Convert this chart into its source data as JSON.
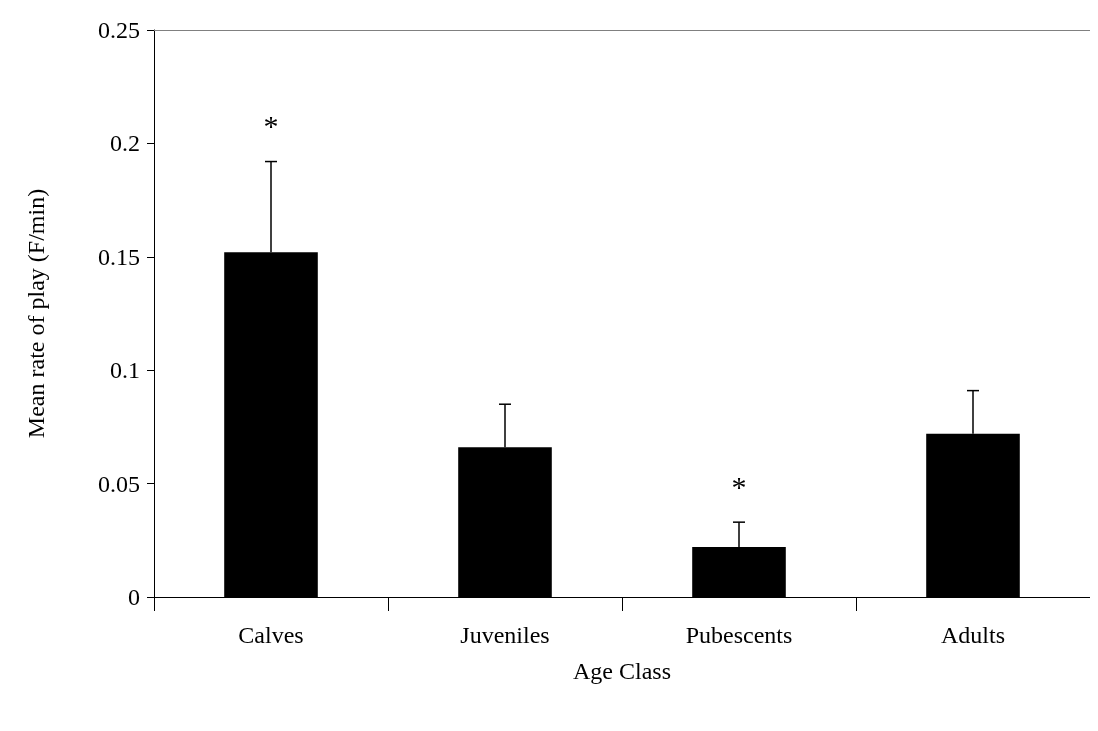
{
  "chart_data": {
    "type": "bar",
    "xlabel": "Age Class",
    "ylabel": "Mean rate of play (F/min)",
    "categories": [
      "Calves",
      "Juveniles",
      "Pubescents",
      "Adults"
    ],
    "values": [
      0.152,
      0.066,
      0.022,
      0.072
    ],
    "errors": [
      [
        0.152,
        0.192
      ],
      [
        0.066,
        0.085
      ],
      [
        0.022,
        0.033
      ],
      [
        0.072,
        0.091
      ]
    ],
    "color": "#000000",
    "ylim": [
      0,
      0.25
    ],
    "yticks": [
      0,
      0.05,
      0.1,
      0.15,
      0.2,
      0.25
    ],
    "annotations": [
      {
        "text": "*",
        "x": "Calves",
        "y": 0.192
      },
      {
        "text": "*",
        "x": "Pubescents",
        "y": 0.033
      }
    ],
    "grid": false
  }
}
